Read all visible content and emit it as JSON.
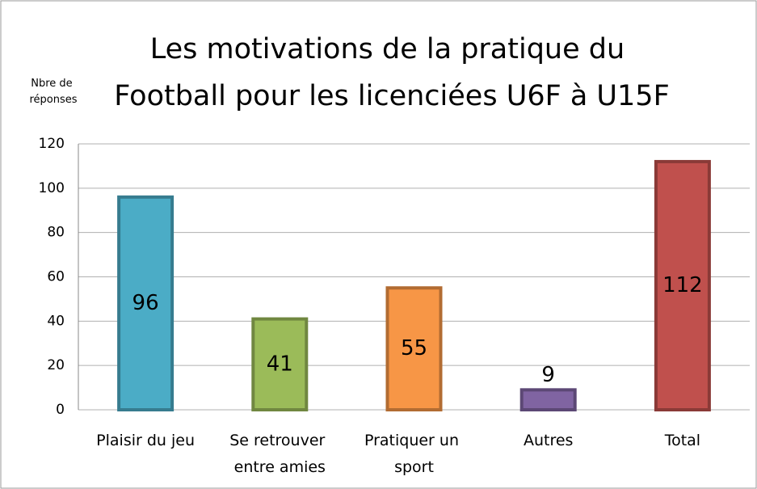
{
  "chart_data": {
    "type": "bar",
    "title": "Les motivations de la pratique du Football pour les licenciées U6F à U15F",
    "y_label": "Nbre de réponses",
    "categories": [
      "Plaisir du jeu",
      "Se retrouver entre amies",
      "Pratiquer un sport",
      "Autres",
      "Total"
    ],
    "values": [
      96,
      41,
      55,
      9,
      112
    ],
    "colors": [
      "#4bacc6",
      "#9bbb59",
      "#f79646",
      "#8064a2",
      "#c0504d"
    ],
    "ylim": [
      0,
      120
    ],
    "yticks": [
      0,
      20,
      40,
      60,
      80,
      100,
      120
    ],
    "grid": true
  }
}
